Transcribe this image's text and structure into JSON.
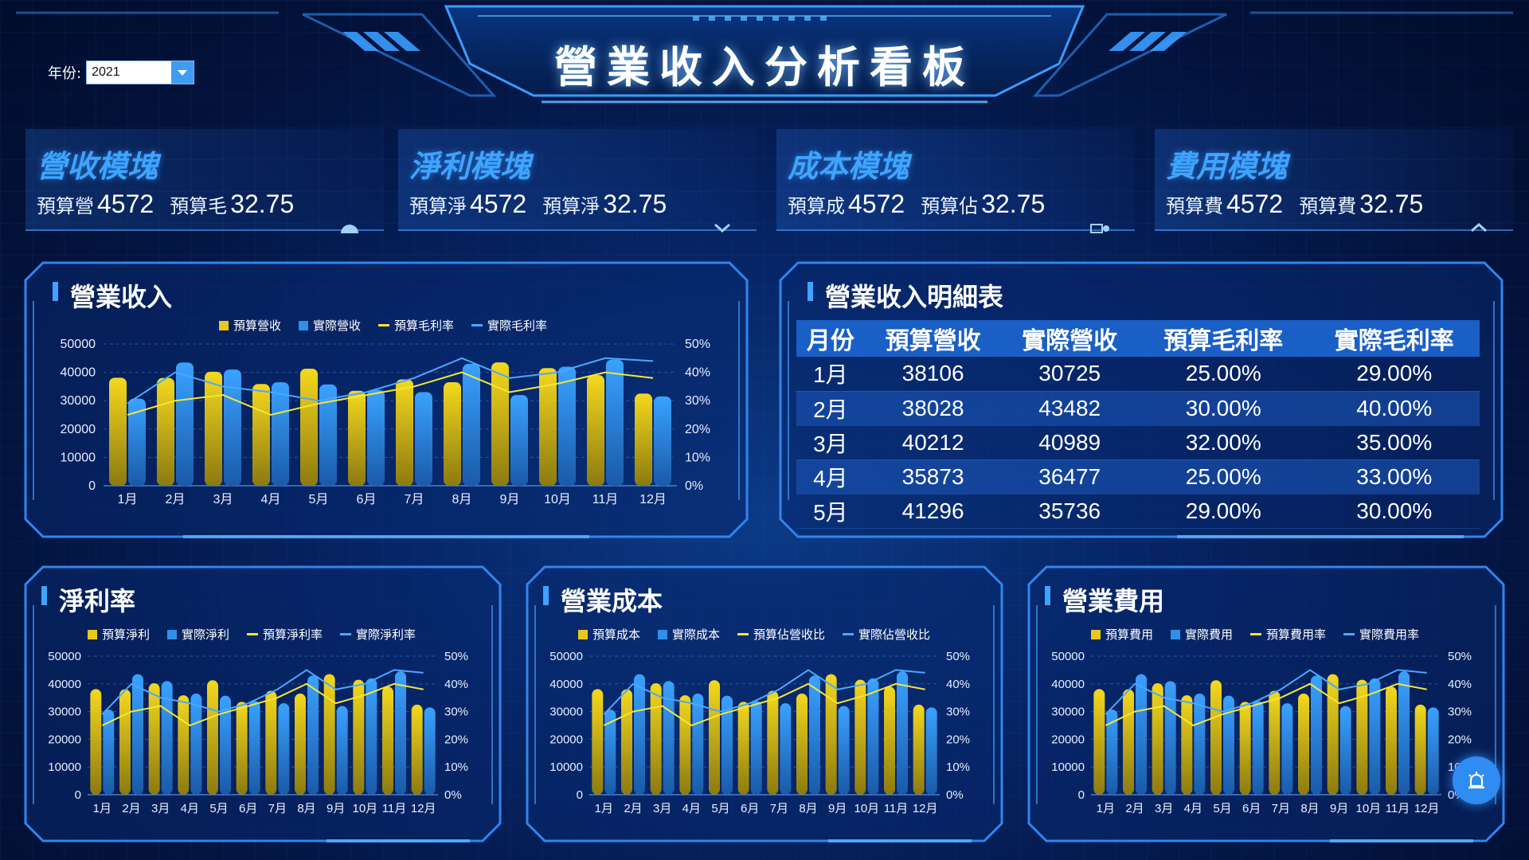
{
  "header": {
    "title": "營業收入分析看板"
  },
  "year_filter": {
    "label": "年份:",
    "value": "2021"
  },
  "kpis": [
    {
      "title": "營收模塊",
      "label1": "預算營",
      "value1": "4572",
      "label2": "預算毛",
      "value2": "32.75",
      "icon": "gauge-icon"
    },
    {
      "title": "淨利模塊",
      "label1": "預算淨",
      "value1": "4572",
      "label2": "預算淨",
      "value2": "32.75",
      "icon": "chevron-down-icon"
    },
    {
      "title": "成本模塊",
      "label1": "預算成",
      "value1": "4572",
      "label2": "預算佔",
      "value2": "32.75",
      "icon": "toggle-icon"
    },
    {
      "title": "費用模塊",
      "label1": "預算費",
      "value1": "4572",
      "label2": "預算費",
      "value2": "32.75",
      "icon": "chevron-up-icon"
    }
  ],
  "colors": {
    "budget_bar": "#e8c81a",
    "actual_bar": "#2e90e8",
    "budget_line": "#f5e53a",
    "actual_line": "#4aa8ff"
  },
  "panels": {
    "revenue": {
      "title": "營業收入",
      "legend": [
        "預算營收",
        "實際營收",
        "預算毛利率",
        "實際毛利率"
      ]
    },
    "detail_table": {
      "title": "營業收入明細表"
    },
    "net_profit": {
      "title": "淨利率",
      "legend": [
        "預算淨利",
        "實際淨利",
        "預算淨利率",
        "實際淨利率"
      ]
    },
    "cost": {
      "title": "營業成本",
      "legend": [
        "預算成本",
        "實際成本",
        "預算佔營收比",
        "實際佔營收比"
      ]
    },
    "expense": {
      "title": "營業費用",
      "legend": [
        "預算費用",
        "實際費用",
        "預算費用率",
        "實際費用率"
      ]
    }
  },
  "table": {
    "headers": [
      "月份",
      "預算營收",
      "實際營收",
      "預算毛利率",
      "實際毛利率"
    ],
    "rows": [
      [
        "1月",
        "38106",
        "30725",
        "25.00%",
        "29.00%"
      ],
      [
        "2月",
        "38028",
        "43482",
        "30.00%",
        "40.00%"
      ],
      [
        "3月",
        "40212",
        "40989",
        "32.00%",
        "35.00%"
      ],
      [
        "4月",
        "35873",
        "36477",
        "25.00%",
        "33.00%"
      ],
      [
        "5月",
        "41296",
        "35736",
        "29.00%",
        "30.00%"
      ]
    ]
  },
  "chart_data": [
    {
      "id": "revenue",
      "type": "bar",
      "categories": [
        "1月",
        "2月",
        "3月",
        "4月",
        "5月",
        "6月",
        "7月",
        "8月",
        "9月",
        "10月",
        "11月",
        "12月"
      ],
      "series": [
        {
          "name": "預算營收",
          "type": "bar",
          "values": [
            38106,
            38028,
            40212,
            35873,
            41296,
            33500,
            37500,
            36500,
            43500,
            41500,
            39000,
            32500
          ]
        },
        {
          "name": "實際營收",
          "type": "bar",
          "values": [
            30725,
            43482,
            40989,
            36477,
            35736,
            33800,
            33000,
            43000,
            32000,
            42000,
            44500,
            31500
          ]
        },
        {
          "name": "預算毛利率",
          "type": "line",
          "axis": "right",
          "values": [
            25,
            30,
            32,
            25,
            29,
            32,
            35,
            40,
            33,
            36,
            40,
            38
          ]
        },
        {
          "name": "實際毛利率",
          "type": "line",
          "axis": "right",
          "values": [
            29,
            40,
            35,
            33,
            30,
            33,
            38,
            45,
            38,
            40,
            45,
            44
          ]
        }
      ],
      "ylim": [
        0,
        50000
      ],
      "y2lim": [
        0,
        50
      ],
      "yticks": [
        "0",
        "10000",
        "20000",
        "30000",
        "40000",
        "50000"
      ],
      "y2ticks": [
        "0%",
        "10%",
        "20%",
        "30%",
        "40%",
        "50%"
      ]
    },
    {
      "id": "net_profit",
      "type": "bar",
      "categories": [
        "1月",
        "2月",
        "3月",
        "4月",
        "5月",
        "6月",
        "7月",
        "8月",
        "9月",
        "10月",
        "11月",
        "12月"
      ],
      "series": [
        {
          "name": "預算淨利",
          "type": "bar",
          "values": [
            38106,
            38028,
            40212,
            35873,
            41296,
            33500,
            37500,
            36500,
            43500,
            41500,
            39000,
            32500
          ]
        },
        {
          "name": "實際淨利",
          "type": "bar",
          "values": [
            30725,
            43482,
            40989,
            36477,
            35736,
            33800,
            33000,
            43000,
            32000,
            42000,
            44500,
            31500
          ]
        },
        {
          "name": "預算淨利率",
          "type": "line",
          "axis": "right",
          "values": [
            25,
            30,
            32,
            25,
            29,
            32,
            35,
            40,
            33,
            36,
            40,
            38
          ]
        },
        {
          "name": "實際淨利率",
          "type": "line",
          "axis": "right",
          "values": [
            29,
            40,
            35,
            33,
            30,
            33,
            38,
            45,
            38,
            40,
            45,
            44
          ]
        }
      ],
      "ylim": [
        0,
        50000
      ],
      "y2lim": [
        0,
        50
      ],
      "yticks": [
        "0",
        "10000",
        "20000",
        "30000",
        "40000",
        "50000"
      ],
      "y2ticks": [
        "0%",
        "10%",
        "20%",
        "30%",
        "40%",
        "50%"
      ]
    },
    {
      "id": "cost",
      "type": "bar",
      "categories": [
        "1月",
        "2月",
        "3月",
        "4月",
        "5月",
        "6月",
        "7月",
        "8月",
        "9月",
        "10月",
        "11月",
        "12月"
      ],
      "series": [
        {
          "name": "預算成本",
          "type": "bar",
          "values": [
            38106,
            38028,
            40212,
            35873,
            41296,
            33500,
            37500,
            36500,
            43500,
            41500,
            39000,
            32500
          ]
        },
        {
          "name": "實際成本",
          "type": "bar",
          "values": [
            30725,
            43482,
            40989,
            36477,
            35736,
            33800,
            33000,
            43000,
            32000,
            42000,
            44500,
            31500
          ]
        },
        {
          "name": "預算佔營收比",
          "type": "line",
          "axis": "right",
          "values": [
            25,
            30,
            32,
            25,
            29,
            32,
            35,
            40,
            33,
            36,
            40,
            38
          ]
        },
        {
          "name": "實際佔營收比",
          "type": "line",
          "axis": "right",
          "values": [
            29,
            40,
            35,
            33,
            30,
            33,
            38,
            45,
            38,
            40,
            45,
            44
          ]
        }
      ],
      "ylim": [
        0,
        50000
      ],
      "y2lim": [
        0,
        50
      ],
      "yticks": [
        "0",
        "10000",
        "20000",
        "30000",
        "40000",
        "50000"
      ],
      "y2ticks": [
        "0%",
        "10%",
        "20%",
        "30%",
        "40%",
        "50%"
      ]
    },
    {
      "id": "expense",
      "type": "bar",
      "categories": [
        "1月",
        "2月",
        "3月",
        "4月",
        "5月",
        "6月",
        "7月",
        "8月",
        "9月",
        "10月",
        "11月",
        "12月"
      ],
      "series": [
        {
          "name": "預算費用",
          "type": "bar",
          "values": [
            38106,
            38028,
            40212,
            35873,
            41296,
            33500,
            37500,
            36500,
            43500,
            41500,
            39000,
            32500
          ]
        },
        {
          "name": "實際費用",
          "type": "bar",
          "values": [
            30725,
            43482,
            40989,
            36477,
            35736,
            33800,
            33000,
            43000,
            32000,
            42000,
            44500,
            31500
          ]
        },
        {
          "name": "預算費用率",
          "type": "line",
          "axis": "right",
          "values": [
            25,
            30,
            32,
            25,
            29,
            32,
            35,
            40,
            33,
            36,
            40,
            38
          ]
        },
        {
          "name": "實際費用率",
          "type": "line",
          "axis": "right",
          "values": [
            29,
            40,
            35,
            33,
            30,
            33,
            38,
            45,
            38,
            40,
            45,
            44
          ]
        }
      ],
      "ylim": [
        0,
        50000
      ],
      "y2lim": [
        0,
        50
      ],
      "yticks": [
        "0",
        "10000",
        "20000",
        "30000",
        "40000",
        "50000"
      ],
      "y2ticks": [
        "0%",
        "10%",
        "20%",
        "30%",
        "40%",
        "50%"
      ]
    }
  ],
  "fab": {
    "icon": "alarm-icon"
  }
}
